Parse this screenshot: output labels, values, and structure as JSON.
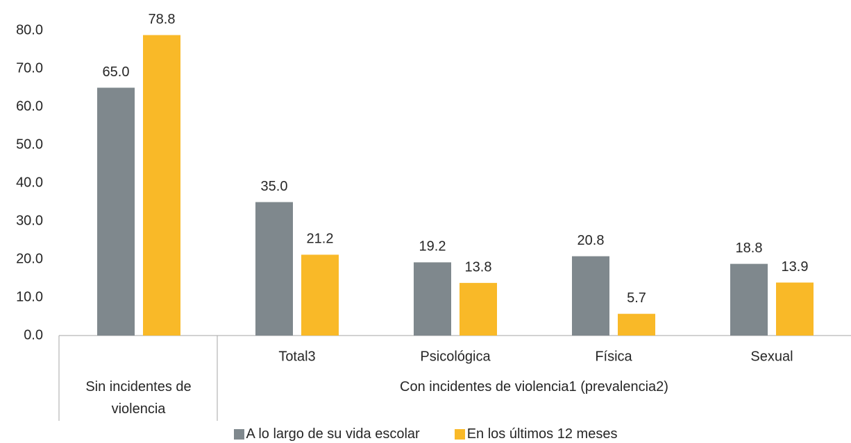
{
  "chart_data": {
    "type": "bar",
    "groups": [
      {
        "label": "Sin incidentes de violencia",
        "categories": [
          null
        ]
      },
      {
        "label": "Con incidentes de violencia1 (prevalencia2)",
        "categories": [
          "Total3",
          "Psicológica",
          "Física",
          "Sexual"
        ]
      }
    ],
    "series": [
      {
        "name": "A lo largo de su vida escolar",
        "color": "#7f888d",
        "values": [
          65,
          35,
          19.2,
          20.8,
          18.8
        ],
        "value_labels": [
          "65.0",
          "35.0",
          "19.2",
          "20.8",
          "18.8"
        ]
      },
      {
        "name": "En los últimos 12 meses",
        "color": "#f9b928",
        "values": [
          78.8,
          21.2,
          13.8,
          5.7,
          13.9
        ],
        "value_labels": [
          "78.8",
          "21.2",
          "13.8",
          "5.7",
          "13.9"
        ]
      }
    ],
    "ylim": [
      0,
      80
    ],
    "yticks": [
      {
        "value": 0,
        "label": "0.0"
      },
      {
        "value": 10,
        "label": "10.0"
      },
      {
        "value": 20,
        "label": "20.0"
      },
      {
        "value": 30,
        "label": "30.0"
      },
      {
        "value": 40,
        "label": "40.0"
      },
      {
        "value": 50,
        "label": "50.0"
      },
      {
        "value": 60,
        "label": "60.0"
      },
      {
        "value": 70,
        "label": "70.0"
      },
      {
        "value": 80,
        "label": "80.0"
      }
    ],
    "legend": "bottom"
  }
}
